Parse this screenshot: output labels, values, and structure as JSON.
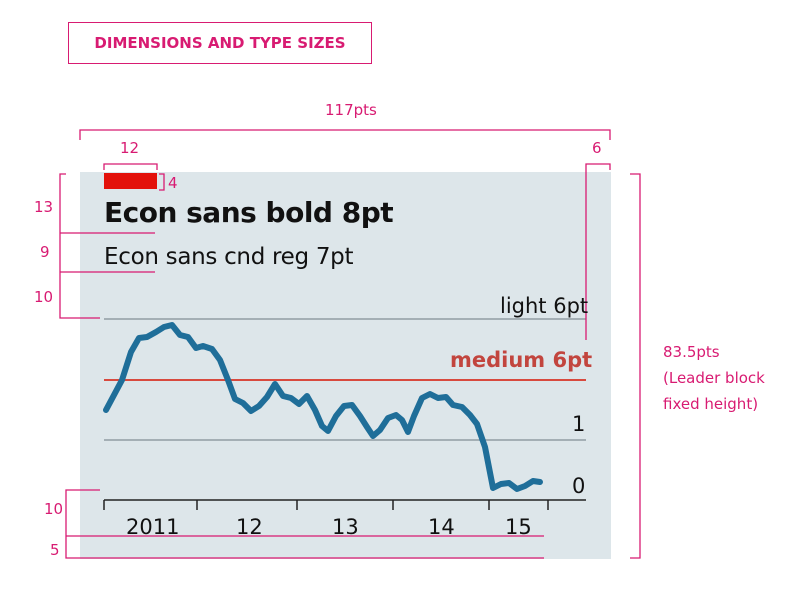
{
  "header": {
    "label": "DIMENSIONS AND TYPE SIZES"
  },
  "annotations": {
    "total_width": "117pts",
    "bar_width": "12",
    "bar_height": "4",
    "right_margin": "6",
    "title_spacing": "13",
    "subtitle_spacing": "9",
    "chart_spacing": "10",
    "axis_spacing": "10",
    "bottom_spacing": "5",
    "height_line1": "83.5pts",
    "height_line2": "(Leader block",
    "height_line3": "fixed height)"
  },
  "sample": {
    "title": "Econ sans bold 8pt",
    "subtitle": "Econ sans cnd reg 7pt"
  },
  "chart_data": {
    "type": "line",
    "gridline_labels": [
      "light 6pt",
      "medium 6pt",
      "1",
      "0"
    ],
    "x_tick_labels": [
      "2011",
      "12",
      "13",
      "14",
      "15"
    ],
    "series_color": "#1f6e99",
    "highlight_color": "#c2453e"
  },
  "colors": {
    "annotation": "#d81b72",
    "panel": "#dde6ea",
    "leader_bar": "#e3120b"
  }
}
